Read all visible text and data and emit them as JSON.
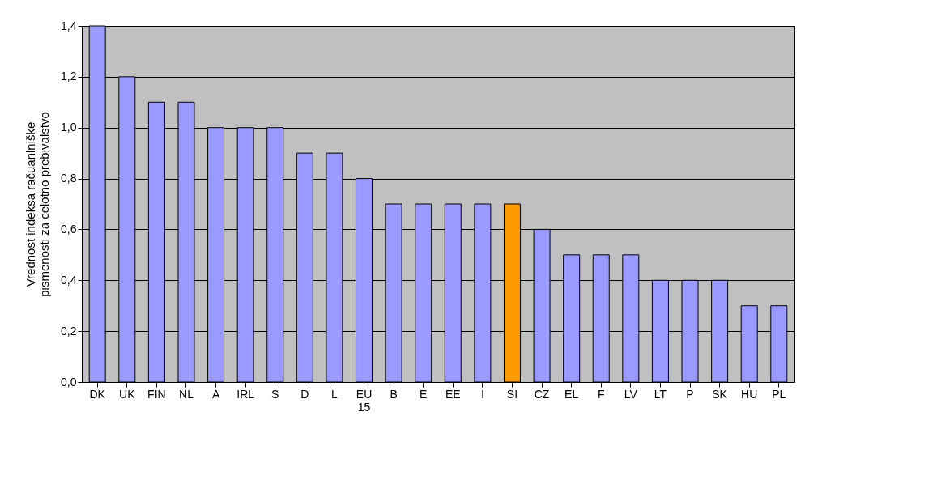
{
  "chart_data": {
    "type": "bar",
    "ylabel": "Vrednost indeksa račuanlniške pismenosti za celotno prebivalstvo",
    "categories": [
      "DK",
      "UK",
      "FIN",
      "NL",
      "A",
      "IRL",
      "S",
      "D",
      "L",
      "EU 15",
      "B",
      "E",
      "EE",
      "I",
      "SI",
      "CZ",
      "EL",
      "F",
      "LV",
      "LT",
      "P",
      "SK",
      "HU",
      "PL"
    ],
    "values": [
      1.4,
      1.2,
      1.1,
      1.1,
      1.0,
      1.0,
      1.0,
      0.9,
      0.9,
      0.8,
      0.7,
      0.7,
      0.7,
      0.7,
      0.7,
      0.6,
      0.5,
      0.5,
      0.5,
      0.4,
      0.4,
      0.4,
      0.3,
      0.3
    ],
    "colors": [
      "#9999ff",
      "#9999ff",
      "#9999ff",
      "#9999ff",
      "#9999ff",
      "#9999ff",
      "#9999ff",
      "#9999ff",
      "#9999ff",
      "#9999ff",
      "#9999ff",
      "#9999ff",
      "#9999ff",
      "#9999ff",
      "#ff9900",
      "#9999ff",
      "#9999ff",
      "#9999ff",
      "#9999ff",
      "#9999ff",
      "#9999ff",
      "#9999ff",
      "#9999ff",
      "#9999ff"
    ],
    "ylim": [
      0,
      1.4
    ],
    "yticks": [
      {
        "value": 0,
        "label": "0,0"
      },
      {
        "value": 0.2,
        "label": "0,2"
      },
      {
        "value": 0.4,
        "label": "0,4"
      },
      {
        "value": 0.6,
        "label": "0,6"
      },
      {
        "value": 0.8,
        "label": "0,8"
      },
      {
        "value": 1.0,
        "label": "1,0"
      },
      {
        "value": 1.2,
        "label": "1,2"
      },
      {
        "value": 1.4,
        "label": "1,4"
      }
    ],
    "grid": "y"
  }
}
